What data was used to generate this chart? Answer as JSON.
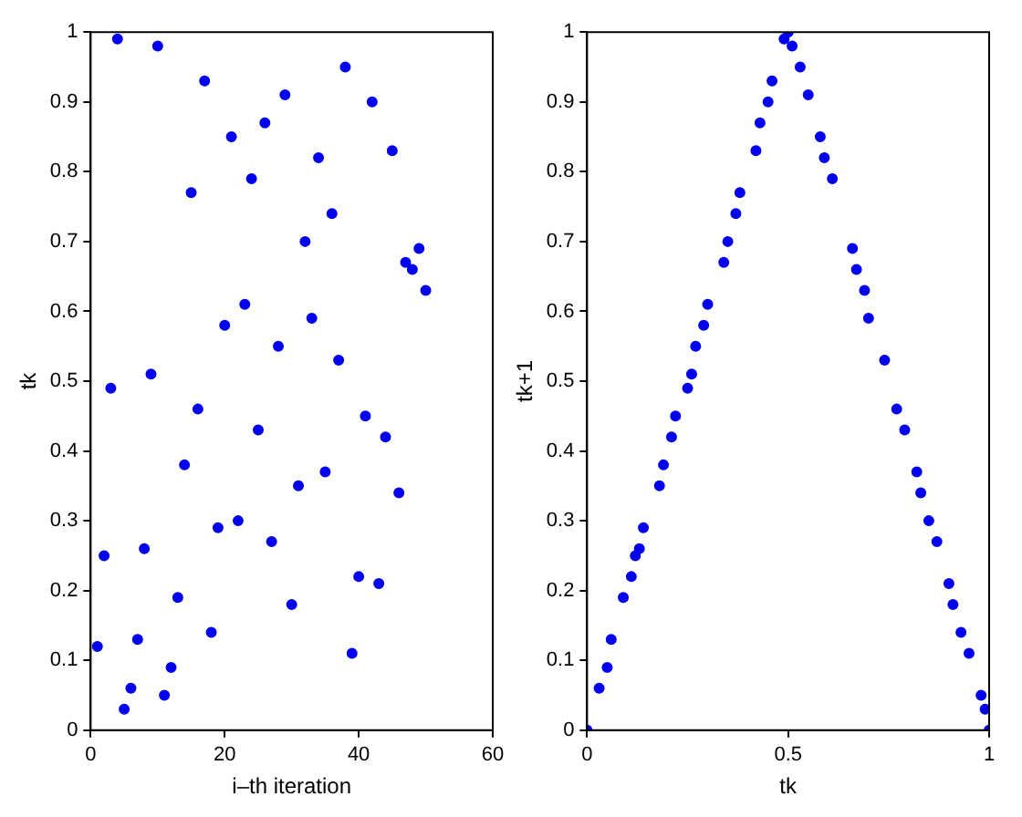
{
  "chart_data": [
    {
      "type": "scatter",
      "xlabel": "i–th iteration",
      "ylabel": "tk",
      "x": [
        1,
        2,
        3,
        4,
        5,
        6,
        7,
        8,
        9,
        10,
        11,
        12,
        13,
        14,
        15,
        16,
        17,
        18,
        19,
        20,
        21,
        22,
        23,
        24,
        25,
        26,
        27,
        28,
        29,
        30,
        31,
        32,
        33,
        34,
        35,
        36,
        37,
        38,
        39,
        40,
        41,
        42,
        43,
        44,
        45,
        46,
        47,
        48,
        49,
        50
      ],
      "series": [
        {
          "color": "#0000ee",
          "values": [
            0.12,
            0.25,
            0.49,
            0.99,
            0.03,
            0.06,
            0.13,
            0.26,
            0.51,
            0.98,
            0.05,
            0.09,
            0.19,
            0.38,
            0.77,
            0.46,
            0.93,
            0.14,
            0.29,
            0.58,
            0.85,
            0.3,
            0.61,
            0.79,
            0.43,
            0.87,
            0.27,
            0.55,
            0.91,
            0.18,
            0.35,
            0.7,
            0.59,
            0.82,
            0.37,
            0.74,
            0.53,
            0.95,
            0.11,
            0.22,
            0.45,
            0.9,
            0.21,
            0.42,
            0.83,
            0.34,
            0.67,
            0.66,
            0.69,
            0.63
          ]
        }
      ],
      "xlim": [
        0,
        60
      ],
      "xticks": [
        0,
        20,
        40,
        60
      ],
      "ylim": [
        0,
        1
      ],
      "yticks": [
        0,
        0.1,
        0.2,
        0.3,
        0.4,
        0.5,
        0.6,
        0.7,
        0.8,
        0.9,
        1
      ],
      "grid": false,
      "legend": false,
      "marker": "circle"
    },
    {
      "type": "scatter",
      "xlabel": "tk",
      "ylabel": "tk+1",
      "x": [
        0,
        0.5,
        1,
        0.12,
        0.25,
        0.49,
        0.99,
        0.03,
        0.06,
        0.13,
        0.26,
        0.51,
        0.98,
        0.05,
        0.09,
        0.19,
        0.38,
        0.77,
        0.46,
        0.93,
        0.14,
        0.29,
        0.58,
        0.85,
        0.3,
        0.61,
        0.79,
        0.43,
        0.87,
        0.27,
        0.55,
        0.91,
        0.18,
        0.35,
        0.7,
        0.59,
        0.82,
        0.37,
        0.74,
        0.53,
        0.95,
        0.11,
        0.22,
        0.45,
        0.9,
        0.21,
        0.42,
        0.83,
        0.34,
        0.67,
        0.66,
        0.69
      ],
      "series": [
        {
          "color": "#0000ee",
          "values": [
            0,
            1,
            0,
            0.25,
            0.49,
            0.99,
            0.03,
            0.06,
            0.13,
            0.26,
            0.51,
            0.98,
            0.05,
            0.09,
            0.19,
            0.38,
            0.77,
            0.46,
            0.93,
            0.14,
            0.29,
            0.58,
            0.85,
            0.3,
            0.61,
            0.79,
            0.43,
            0.87,
            0.27,
            0.55,
            0.91,
            0.18,
            0.35,
            0.7,
            0.59,
            0.82,
            0.37,
            0.74,
            0.53,
            0.95,
            0.11,
            0.22,
            0.45,
            0.9,
            0.21,
            0.42,
            0.83,
            0.34,
            0.67,
            0.66,
            0.69,
            0.63
          ]
        }
      ],
      "xlim": [
        0,
        1
      ],
      "xticks": [
        0,
        0.5,
        1
      ],
      "ylim": [
        0,
        1
      ],
      "yticks": [
        0,
        0.1,
        0.2,
        0.3,
        0.4,
        0.5,
        0.6,
        0.7,
        0.8,
        0.9,
        1
      ],
      "grid": false,
      "legend": false,
      "marker": "circle"
    }
  ]
}
